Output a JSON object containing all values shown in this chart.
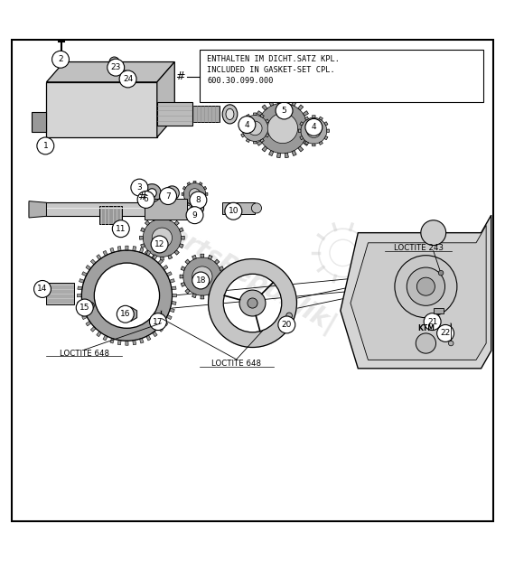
{
  "title": "",
  "bg_color": "#ffffff",
  "border_color": "#000000",
  "line_color": "#000000",
  "text_color": "#000000",
  "light_gray": "#cccccc",
  "mid_gray": "#999999",
  "dark_gray": "#555555",
  "box_text_lines": [
    "ENTHALTEN IM DICHT.SATZ KPL.",
    "INCLUDED IN GASKET-SET CPL.",
    "600.30.099.000"
  ],
  "hash_label": "#",
  "loctite_648_1": "LOCTITE 648",
  "loctite_648_2": "LOCTITE 648",
  "loctite_243": "LOCTITE 243",
  "watermark": "artsRepublik|"
}
